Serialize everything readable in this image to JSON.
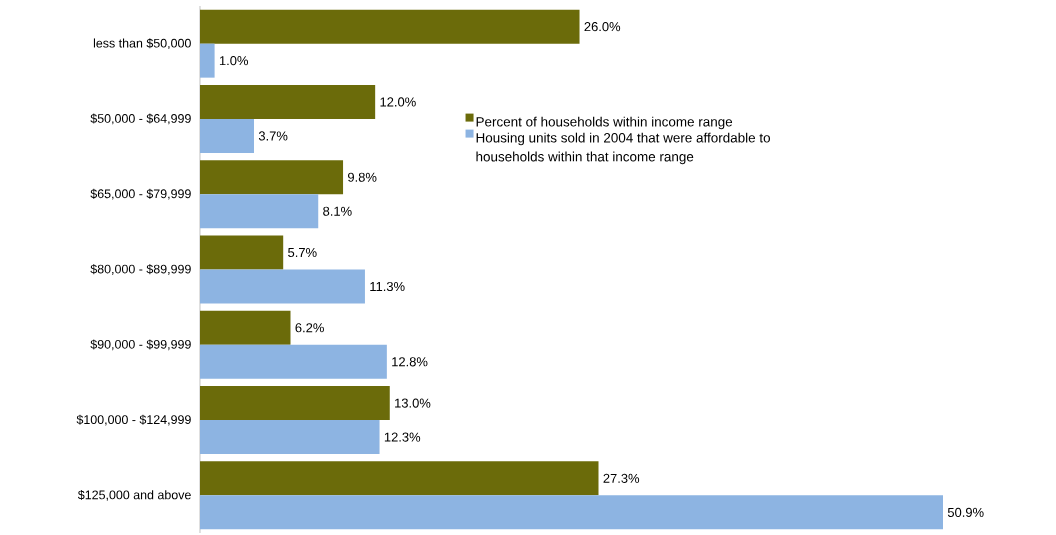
{
  "chart_data": {
    "type": "bar",
    "orientation": "horizontal",
    "categories": [
      "less than $50,000",
      "$50,000 - $64,999",
      "$65,000 - $79,999",
      "$80,000 - $89,999",
      "$90,000 - $99,999",
      "$100,000 - $124,999",
      "$125,000 and above"
    ],
    "series": [
      {
        "name": "Percent of households within income range",
        "color": "#6b6b0a",
        "values": [
          26.0,
          12.0,
          9.8,
          5.7,
          6.2,
          13.0,
          27.3
        ],
        "value_labels": [
          "26.0%",
          "12.0%",
          "9.8%",
          "5.7%",
          "6.2%",
          "13.0%",
          "27.3%"
        ]
      },
      {
        "name": "Housing units sold in 2004 that were affordable to households within that income range",
        "color": "#8db4e2",
        "values": [
          1.0,
          3.7,
          8.1,
          11.3,
          12.8,
          12.3,
          50.9
        ],
        "value_labels": [
          "1.0%",
          "3.7%",
          "8.1%",
          "11.3%",
          "12.8%",
          "12.3%",
          "50.9%"
        ]
      }
    ],
    "legend": "right"
  }
}
